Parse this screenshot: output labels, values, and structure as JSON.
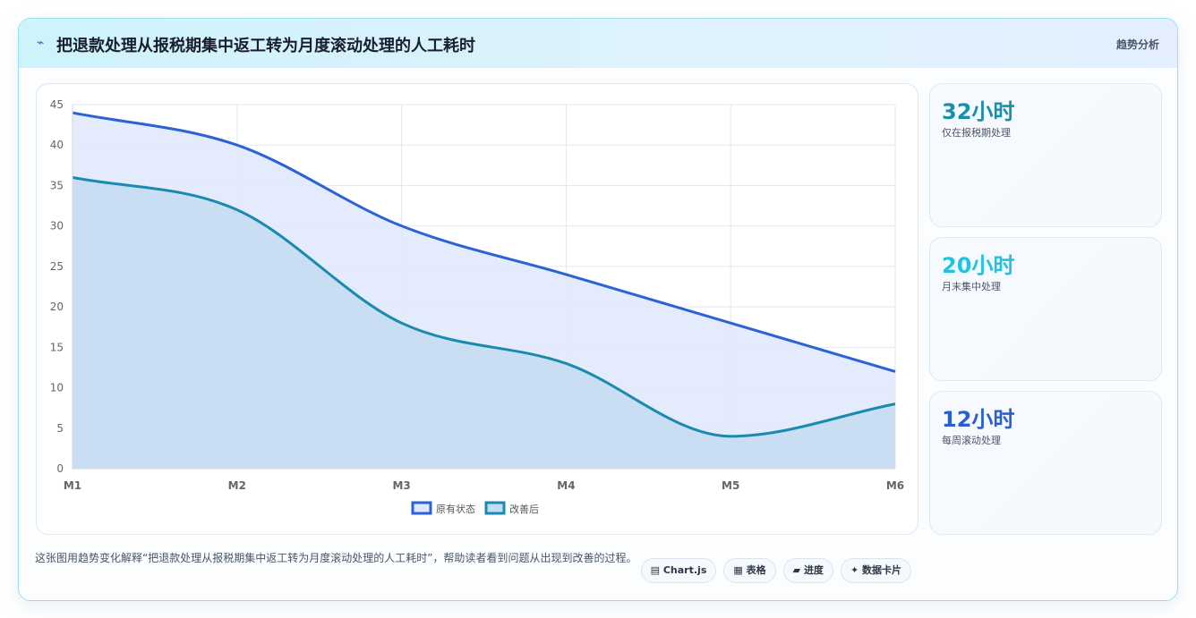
{
  "header": {
    "icon": "⌁",
    "title": "把退款处理从报税期集中返工转为月度滚动处理的人工耗时",
    "tag": "趋势分析"
  },
  "stats": [
    {
      "value": "32小时",
      "label": "仅在报税期处理",
      "color": "#1a8fab"
    },
    {
      "value": "20小时",
      "label": "月末集中处理",
      "color": "#22c3dc"
    },
    {
      "value": "12小时",
      "label": "每周滚动处理",
      "color": "#2a5fd0"
    }
  ],
  "description": "这张图用趋势变化解释“把退款处理从报税期集中返工转为月度滚动处理的人工耗时”，帮助读者看到问题从出现到改善的过程。",
  "pills": [
    {
      "icon": "▤",
      "label": "Chart.js"
    },
    {
      "icon": "▦",
      "label": "表格"
    },
    {
      "icon": "▰",
      "label": "进度"
    },
    {
      "icon": "✦",
      "label": "数据卡片"
    }
  ],
  "chart_data": {
    "type": "area",
    "categories": [
      "M1",
      "M2",
      "M3",
      "M4",
      "M5",
      "M6"
    ],
    "series": [
      {
        "name": "原有状态",
        "values": [
          44,
          40,
          30,
          24,
          18,
          12
        ],
        "color": "#2b62d6",
        "fill": "#dfe8fb"
      },
      {
        "name": "改善后",
        "values": [
          36,
          32,
          18,
          13,
          4,
          8
        ],
        "color": "#1a8aae",
        "fill": "#c4dcf0"
      }
    ],
    "ylim": [
      0,
      45
    ],
    "yticks": [
      0,
      5,
      10,
      15,
      20,
      25,
      30,
      35,
      40,
      45
    ],
    "grid": true,
    "legend": "bottom"
  }
}
